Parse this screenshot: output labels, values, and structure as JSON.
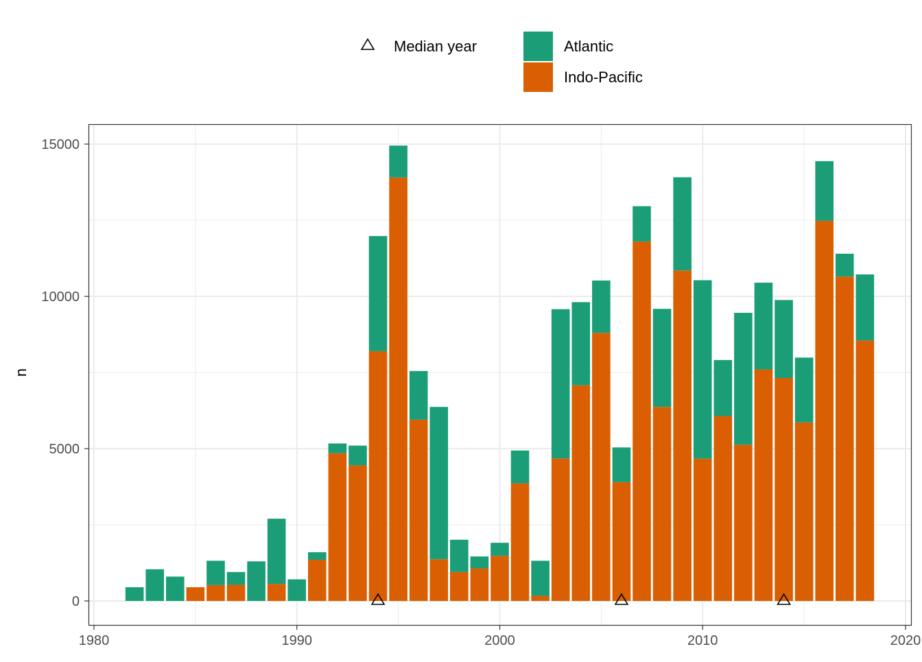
{
  "chart_data": {
    "type": "bar",
    "stacked": true,
    "xlabel": "",
    "ylabel": "n",
    "xlim": [
      1980,
      2020
    ],
    "ylim": [
      0,
      15000
    ],
    "x_ticks": [
      1980,
      1990,
      2000,
      2010,
      2020
    ],
    "y_ticks": [
      0,
      5000,
      10000,
      15000
    ],
    "grid": true,
    "legend_position": "top",
    "x": [
      1982,
      1983,
      1984,
      1985,
      1986,
      1987,
      1988,
      1989,
      1990,
      1991,
      1992,
      1993,
      1994,
      1995,
      1996,
      1997,
      1998,
      1999,
      2000,
      2001,
      2002,
      2003,
      2004,
      2005,
      2006,
      2007,
      2008,
      2009,
      2010,
      2011,
      2012,
      2013,
      2014,
      2015,
      2016,
      2017,
      2018
    ],
    "series": [
      {
        "name": "Indo-Pacific",
        "color": "#D95F02",
        "values": [
          0,
          0,
          0,
          450,
          520,
          530,
          0,
          560,
          0,
          1350,
          4850,
          4450,
          8200,
          13900,
          5950,
          1370,
          950,
          1070,
          1480,
          3860,
          170,
          4680,
          7080,
          8800,
          3900,
          11800,
          6370,
          10850,
          4670,
          6070,
          5130,
          7600,
          7320,
          5860,
          12480,
          10650,
          8550
        ]
      },
      {
        "name": "Atlantic",
        "color": "#1B9E77",
        "values": [
          450,
          1040,
          800,
          0,
          800,
          420,
          1300,
          2140,
          710,
          250,
          320,
          650,
          3780,
          1050,
          1600,
          5000,
          1060,
          390,
          430,
          1080,
          1150,
          4900,
          2730,
          1720,
          1140,
          1160,
          3220,
          3060,
          5860,
          1840,
          4330,
          2850,
          2560,
          2130,
          1960,
          750,
          2170
        ]
      }
    ],
    "median_years": {
      "label": "Median year",
      "marker": "triangle-open",
      "values": [
        1994,
        2006,
        2014
      ]
    },
    "legend": {
      "median_label": "Median year",
      "fill_entries": [
        {
          "name": "Atlantic",
          "color": "#1B9E77"
        },
        {
          "name": "Indo-Pacific",
          "color": "#D95F02"
        }
      ]
    }
  }
}
